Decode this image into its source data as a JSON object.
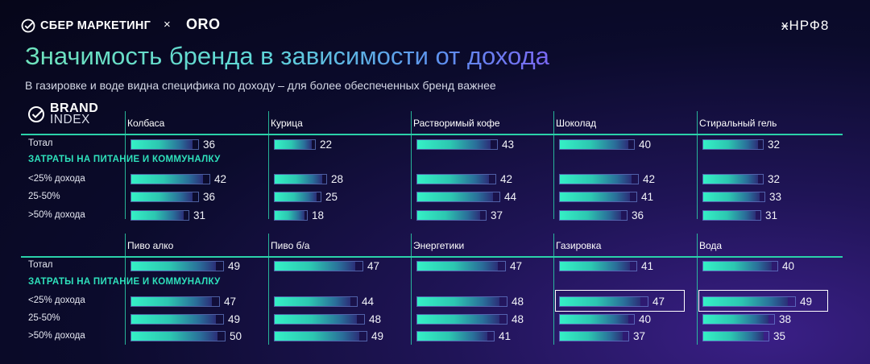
{
  "header": {
    "sber_logo": "СБЕР МАРКЕТИНГ",
    "cross": "×",
    "oro_logo": "ORO",
    "nrf_logo": "ӿНРФ8",
    "title": "Значимость бренда в зависимости от дохода",
    "subtitle": "В газировке и воде видна специфика по доходу – для более обеспеченных бренд важнее",
    "brand_index_line1": "BRAND",
    "brand_index_line2": "INDEX"
  },
  "colors": {
    "accent": "#2bd1a9",
    "bar_start": "#35f0c6",
    "bar_end": "#2b2f78",
    "title_start": "#6fe3bd",
    "title_end": "#7a68f2"
  },
  "chart_data": [
    {
      "type": "bar",
      "section_label": "ЗАТРАТЫ НА ПИТАНИЕ И КОММУНАЛКУ",
      "rows": [
        "Тотал",
        "<25% дохода",
        "25-50%",
        ">50% дохода"
      ],
      "categories": [
        "Колбаса",
        "Курица",
        "Растворимый кофе",
        "Шоколад",
        "Стиральный гель"
      ],
      "values": [
        [
          36,
          42,
          36,
          31
        ],
        [
          22,
          28,
          25,
          18
        ],
        [
          43,
          42,
          44,
          37
        ],
        [
          40,
          42,
          41,
          36
        ],
        [
          32,
          32,
          33,
          31
        ]
      ],
      "xlim": [
        0,
        50
      ],
      "highlighted": []
    },
    {
      "type": "bar",
      "section_label": "ЗАТРАТЫ НА ПИТАНИЕ И КОММУНАЛКУ",
      "rows": [
        "Тотал",
        "<25% дохода",
        "25-50%",
        ">50% дохода"
      ],
      "categories": [
        "Пиво алко",
        "Пиво б/а",
        "Энергетики",
        "Газировка",
        "Вода"
      ],
      "values": [
        [
          49,
          47,
          49,
          50
        ],
        [
          47,
          44,
          48,
          49
        ],
        [
          47,
          48,
          48,
          41
        ],
        [
          41,
          47,
          40,
          37
        ],
        [
          40,
          49,
          38,
          35
        ]
      ],
      "xlim": [
        0,
        50
      ],
      "highlighted": [
        [
          3,
          1
        ],
        [
          4,
          1
        ]
      ]
    }
  ]
}
